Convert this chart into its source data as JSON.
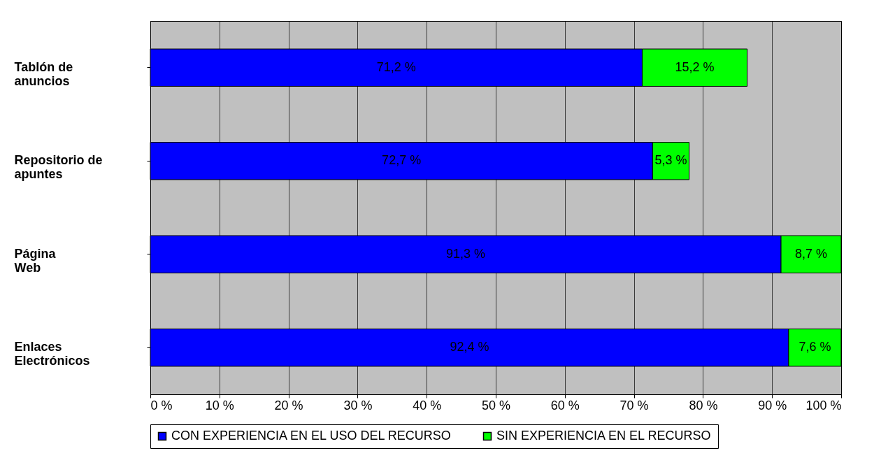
{
  "chart_data": {
    "type": "bar",
    "orientation": "horizontal",
    "stacked": true,
    "categories": [
      "Tablón de anuncios",
      "Repositorio de apuntes",
      "Página Web",
      "Enlaces Electrónicos"
    ],
    "series": [
      {
        "name": "CON EXPERIENCIA EN EL USO DEL RECURSO",
        "color": "#0000ff",
        "values": [
          71.2,
          72.7,
          91.3,
          92.4
        ],
        "value_labels": [
          "71,2 %",
          "72,7 %",
          "91,3 %",
          "92,4 %"
        ]
      },
      {
        "name": "SIN EXPERIENCIA EN EL RECURSO",
        "color": "#00ff00",
        "values": [
          15.2,
          5.3,
          8.7,
          7.6
        ],
        "value_labels": [
          "15,2 %",
          "5,3 %",
          "8,7 %",
          "7,6 %"
        ]
      }
    ],
    "xlim": [
      0,
      100
    ],
    "xticks": [
      {
        "value": 0,
        "label": "0 %"
      },
      {
        "value": 10,
        "label": "10 %"
      },
      {
        "value": 20,
        "label": "20 %"
      },
      {
        "value": 30,
        "label": "30 %"
      },
      {
        "value": 40,
        "label": "40 %"
      },
      {
        "value": 50,
        "label": "50 %"
      },
      {
        "value": 60,
        "label": "60 %"
      },
      {
        "value": 70,
        "label": "70 %"
      },
      {
        "value": 80,
        "label": "80 %"
      },
      {
        "value": 90,
        "label": "90 %"
      },
      {
        "value": 100,
        "label": "100 %"
      }
    ],
    "grid": "x",
    "legend": "bottom"
  }
}
